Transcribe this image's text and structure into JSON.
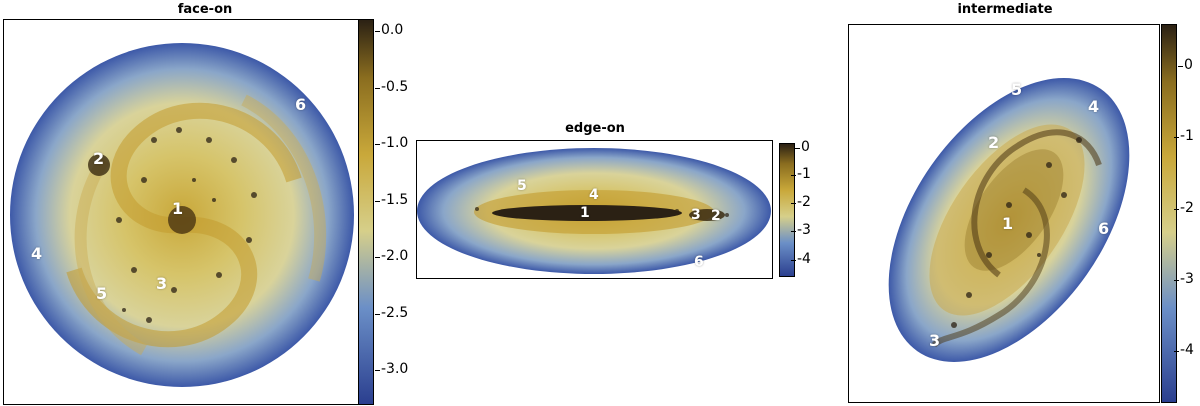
{
  "panels": [
    {
      "title": "face-on",
      "colorbar_ticks": [
        "0.0",
        "-0.5",
        "-1.0",
        "-1.5",
        "-2.0",
        "-2.5",
        "-3.0"
      ],
      "region_labels": [
        "1",
        "2",
        "3",
        "4",
        "5",
        "6"
      ]
    },
    {
      "title": "edge-on",
      "colorbar_ticks": [
        "0",
        "-1",
        "-2",
        "-3",
        "-4"
      ],
      "region_labels": [
        "1",
        "2",
        "3",
        "4",
        "5",
        "6"
      ]
    },
    {
      "title": "intermediate",
      "colorbar_ticks": [
        "0",
        "-1",
        "-2",
        "-3",
        "-4"
      ],
      "region_labels": [
        "1",
        "2",
        "3",
        "4",
        "5",
        "6"
      ]
    }
  ],
  "colors": {
    "low": "#2b3f8f",
    "mid_low": "#6b8fc7",
    "mid": "#d6cf8a",
    "mid_high": "#c9a83a",
    "high": "#2b2114"
  }
}
